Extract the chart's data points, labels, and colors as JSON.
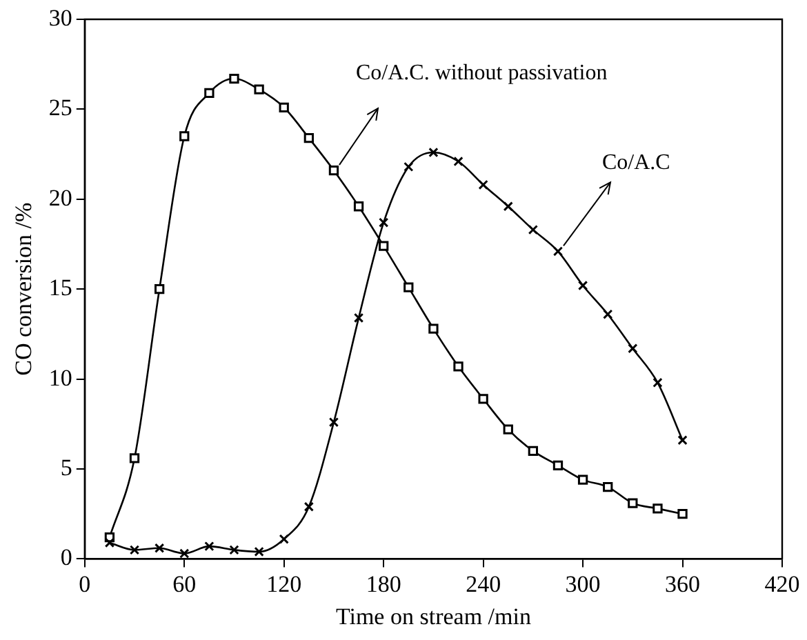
{
  "chart_data": {
    "type": "line",
    "xlabel": "Time on stream /min",
    "ylabel": "CO conversion /%",
    "x": [
      15,
      30,
      45,
      60,
      75,
      90,
      105,
      120,
      135,
      150,
      165,
      180,
      195,
      210,
      225,
      240,
      255,
      270,
      285,
      300,
      315,
      330,
      345,
      360
    ],
    "series": [
      {
        "name": "Co/A.C. without passivation",
        "color": "#000000",
        "marker": "square",
        "values": [
          1.2,
          5.6,
          15,
          23.5,
          25.9,
          26.7,
          26.1,
          25.1,
          23.4,
          21.6,
          19.6,
          17.4,
          15.1,
          12.8,
          10.7,
          8.9,
          7.2,
          6.0,
          5.2,
          4.4,
          4.0,
          3.1,
          2.8,
          2.5
        ]
      },
      {
        "name": "Co/A.C",
        "color": "#000000",
        "marker": "cross",
        "values": [
          0.9,
          0.5,
          0.6,
          0.3,
          0.7,
          0.5,
          0.4,
          1.1,
          2.9,
          7.6,
          13.4,
          18.7,
          21.8,
          22.6,
          22.1,
          20.8,
          19.6,
          18.3,
          17.1,
          15.2,
          13.6,
          11.7,
          9.8,
          6.6
        ]
      }
    ],
    "xlim": [
      0,
      420
    ],
    "xticks": [
      0,
      60,
      120,
      180,
      240,
      300,
      360,
      420
    ],
    "ylim": [
      0,
      30
    ],
    "yticks": [
      0,
      5,
      10,
      15,
      20,
      25,
      30
    ],
    "grid": false,
    "legend": false,
    "line_style": "solid"
  }
}
